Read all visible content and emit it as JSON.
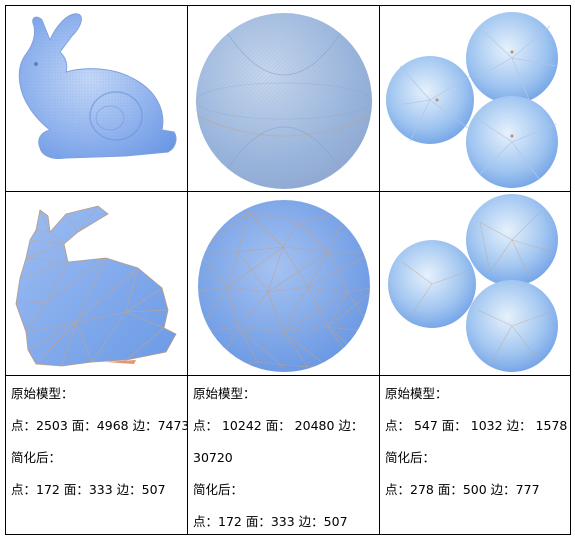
{
  "table": {
    "bunny": {
      "original_heading": "原始模型：",
      "original_stats": "点：2503 面：4968 边：7473",
      "simplified_heading": "简化后：",
      "simplified_stats": "点：172   面：333   边：507"
    },
    "sphere": {
      "original_heading": "原始模型：",
      "original_stats_line1": "点：  10242  面：  20480  边：",
      "original_stats_line2": "30720",
      "simplified_heading": "简化后：",
      "simplified_stats": "点：172     面：333     边：507"
    },
    "triple_sphere": {
      "original_heading": "原始模型：",
      "original_stats": "点：  547  面：  1032  边：  1578",
      "simplified_heading": "简化后：",
      "simplified_stats": "点：278      面：500      边：777"
    }
  },
  "colors": {
    "mesh_fill": "#8fb4ef",
    "mesh_dark": "#5f8fe3",
    "mesh_light": "#c9dbf7",
    "wire": "#c9a07f",
    "border": "#000000"
  },
  "icons": [
    "bunny-mesh-image",
    "sphere-mesh-image",
    "triple-sphere-mesh-image"
  ]
}
